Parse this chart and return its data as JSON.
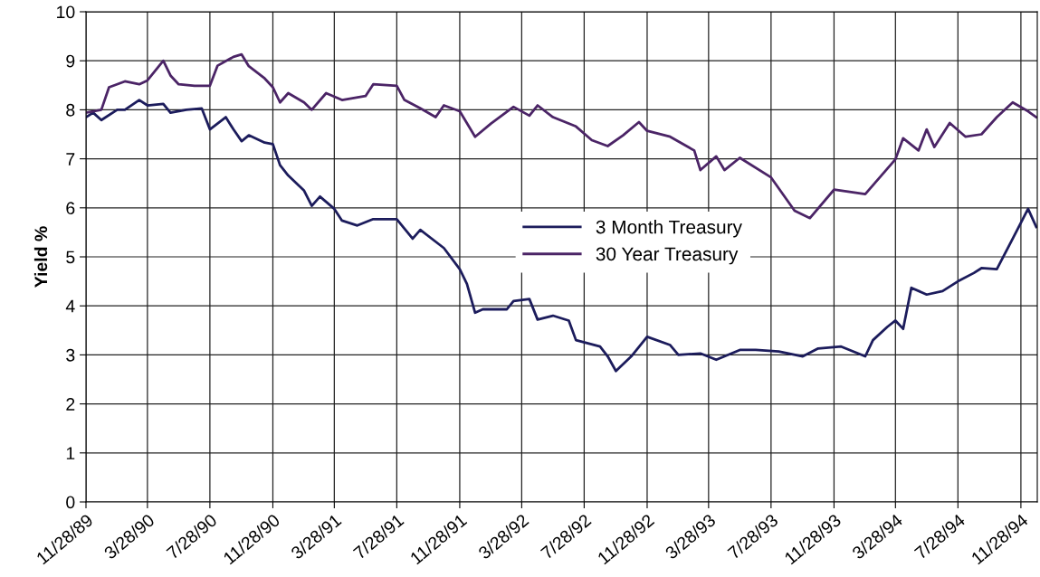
{
  "chart_data": {
    "type": "line",
    "ylabel": "Yield %",
    "grid": true,
    "legend": "center",
    "line_style": "solid",
    "ylim": [
      0,
      10
    ],
    "yticks": [
      0,
      1,
      2,
      3,
      4,
      5,
      6,
      7,
      8,
      9,
      10
    ],
    "xlim": [
      "1989-11-28",
      "1994-12-30"
    ],
    "xticks": [
      {
        "value": "1989-11-28",
        "label": "11/28/89"
      },
      {
        "value": "1990-03-28",
        "label": "3/28/90"
      },
      {
        "value": "1990-07-28",
        "label": "7/28/90"
      },
      {
        "value": "1990-11-28",
        "label": "11/28/90"
      },
      {
        "value": "1991-03-28",
        "label": "3/28/91"
      },
      {
        "value": "1991-07-28",
        "label": "7/28/91"
      },
      {
        "value": "1991-11-28",
        "label": "11/28/91"
      },
      {
        "value": "1992-03-28",
        "label": "3/28/92"
      },
      {
        "value": "1992-07-28",
        "label": "7/28/92"
      },
      {
        "value": "1992-11-28",
        "label": "11/28/92"
      },
      {
        "value": "1993-03-28",
        "label": "3/28/93"
      },
      {
        "value": "1993-07-28",
        "label": "7/28/93"
      },
      {
        "value": "1993-11-28",
        "label": "11/28/93"
      },
      {
        "value": "1994-03-28",
        "label": "3/28/94"
      },
      {
        "value": "1994-07-28",
        "label": "7/28/94"
      },
      {
        "value": "1994-11-28",
        "label": "11/28/94"
      }
    ],
    "series": [
      {
        "name": "3 Month Treasury",
        "color": "#1c1c5c",
        "x": [
          "1989-11-28",
          "1989-12-12",
          "1989-12-28",
          "1990-01-28",
          "1990-02-12",
          "1990-03-12",
          "1990-03-28",
          "1990-04-28",
          "1990-05-12",
          "1990-06-12",
          "1990-07-12",
          "1990-07-28",
          "1990-08-28",
          "1990-09-12",
          "1990-09-28",
          "1990-10-12",
          "1990-11-12",
          "1990-11-28",
          "1990-12-12",
          "1990-12-28",
          "1991-01-28",
          "1991-02-12",
          "1991-02-28",
          "1991-03-28",
          "1991-04-12",
          "1991-05-12",
          "1991-06-12",
          "1991-07-28",
          "1991-08-28",
          "1991-09-12",
          "1991-10-28",
          "1991-11-28",
          "1991-12-12",
          "1991-12-28",
          "1992-01-12",
          "1992-02-28",
          "1992-03-12",
          "1992-04-12",
          "1992-04-28",
          "1992-05-28",
          "1992-06-28",
          "1992-07-12",
          "1992-08-28",
          "1992-09-12",
          "1992-09-28",
          "1992-10-28",
          "1992-11-28",
          "1993-01-12",
          "1993-01-28",
          "1993-03-12",
          "1993-04-12",
          "1993-05-28",
          "1993-06-28",
          "1993-08-12",
          "1993-09-28",
          "1993-10-28",
          "1993-12-12",
          "1994-01-28",
          "1994-02-12",
          "1994-03-12",
          "1994-03-28",
          "1994-04-12",
          "1994-04-28",
          "1994-05-28",
          "1994-06-28",
          "1994-07-28",
          "1994-08-28",
          "1994-09-12",
          "1994-10-12",
          "1994-11-12",
          "1994-12-12",
          "1994-12-28"
        ],
        "values": [
          7.85,
          7.94,
          7.79,
          8.0,
          8.0,
          8.2,
          8.09,
          8.12,
          7.94,
          8.0,
          8.03,
          7.6,
          7.85,
          7.6,
          7.36,
          7.48,
          7.33,
          7.3,
          6.87,
          6.66,
          6.35,
          6.04,
          6.23,
          5.98,
          5.74,
          5.64,
          5.77,
          5.77,
          5.37,
          5.55,
          5.18,
          4.75,
          4.45,
          3.86,
          3.93,
          3.93,
          4.1,
          4.14,
          3.72,
          3.8,
          3.7,
          3.3,
          3.17,
          2.97,
          2.67,
          2.97,
          3.37,
          3.2,
          3.0,
          3.03,
          2.9,
          3.1,
          3.1,
          3.07,
          2.97,
          3.13,
          3.17,
          2.97,
          3.3,
          3.57,
          3.7,
          3.53,
          4.37,
          4.23,
          4.3,
          4.5,
          4.67,
          4.77,
          4.75,
          5.37,
          5.98,
          5.61
        ]
      },
      {
        "name": "30 Year Treasury",
        "color": "#4b2466",
        "x": [
          "1989-11-28",
          "1989-12-28",
          "1990-01-12",
          "1990-02-12",
          "1990-03-12",
          "1990-03-28",
          "1990-04-28",
          "1990-05-12",
          "1990-05-28",
          "1990-06-28",
          "1990-07-28",
          "1990-08-12",
          "1990-09-12",
          "1990-09-28",
          "1990-10-12",
          "1990-11-12",
          "1990-11-28",
          "1990-12-12",
          "1990-12-28",
          "1991-01-28",
          "1991-02-12",
          "1991-03-12",
          "1991-04-12",
          "1991-05-28",
          "1991-06-12",
          "1991-07-28",
          "1991-08-12",
          "1991-09-12",
          "1991-10-12",
          "1991-10-28",
          "1991-11-28",
          "1991-12-28",
          "1992-01-28",
          "1992-03-12",
          "1992-04-12",
          "1992-04-28",
          "1992-05-28",
          "1992-07-12",
          "1992-08-12",
          "1992-09-12",
          "1992-10-12",
          "1992-11-12",
          "1992-11-28",
          "1993-01-12",
          "1993-02-28",
          "1993-03-12",
          "1993-04-12",
          "1993-04-28",
          "1993-05-28",
          "1993-07-28",
          "1993-09-12",
          "1993-10-12",
          "1993-11-28",
          "1994-01-28",
          "1994-03-28",
          "1994-04-12",
          "1994-05-12",
          "1994-05-28",
          "1994-06-12",
          "1994-07-12",
          "1994-08-12",
          "1994-09-12",
          "1994-10-12",
          "1994-11-12",
          "1994-12-12",
          "1994-12-28"
        ],
        "values": [
          7.94,
          8.0,
          8.46,
          8.58,
          8.52,
          8.6,
          9.0,
          8.7,
          8.52,
          8.49,
          8.49,
          8.9,
          9.08,
          9.13,
          8.89,
          8.64,
          8.46,
          8.15,
          8.34,
          8.15,
          8.0,
          8.34,
          8.2,
          8.28,
          8.52,
          8.49,
          8.2,
          8.03,
          7.85,
          8.09,
          7.97,
          7.45,
          7.72,
          8.06,
          7.88,
          8.09,
          7.85,
          7.66,
          7.38,
          7.26,
          7.48,
          7.75,
          7.57,
          7.45,
          7.17,
          6.77,
          7.05,
          6.77,
          7.02,
          6.62,
          5.94,
          5.79,
          6.37,
          6.28,
          6.99,
          7.42,
          7.17,
          7.6,
          7.24,
          7.73,
          7.45,
          7.5,
          7.85,
          8.15,
          7.97,
          7.85
        ]
      }
    ]
  }
}
